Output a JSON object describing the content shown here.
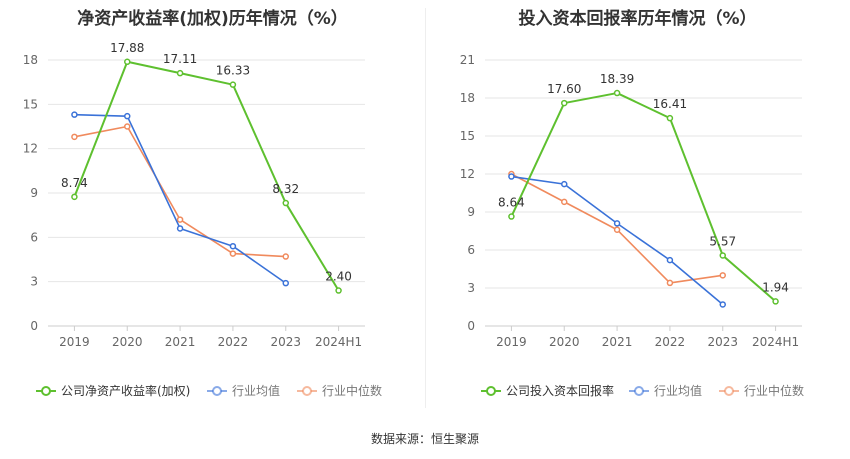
{
  "source_label": "数据来源：恒生聚源",
  "colors": {
    "company": "#5ec02f",
    "avg": "#3a72d8",
    "median": "#f08a5d",
    "grid": "#e6e6e6",
    "axis_text": "#666666"
  },
  "chart_data": [
    {
      "type": "line",
      "title": "净资产收益率(加权)历年情况（%）",
      "categories": [
        "2019",
        "2020",
        "2021",
        "2022",
        "2023",
        "2024H1"
      ],
      "ylim": [
        0,
        18
      ],
      "yticks": [
        0,
        3,
        6,
        9,
        12,
        15,
        18
      ],
      "grid": true,
      "legend_position": "bottom-left",
      "series": [
        {
          "name": "公司净资产收益率(加权)",
          "color": "#5ec02f",
          "values": [
            8.74,
            17.88,
            17.11,
            16.33,
            8.32,
            2.4
          ],
          "labels": [
            "8.74",
            "17.88",
            "17.11",
            "16.33",
            "8.32",
            "2.40"
          ]
        },
        {
          "name": "行业均值",
          "color": "#3a72d8",
          "values": [
            14.3,
            14.2,
            6.6,
            5.4,
            2.9,
            null
          ]
        },
        {
          "name": "行业中位数",
          "color": "#f08a5d",
          "values": [
            12.8,
            13.5,
            7.2,
            4.9,
            4.7,
            null
          ]
        }
      ]
    },
    {
      "type": "line",
      "title": "投入资本回报率历年情况（%）",
      "categories": [
        "2019",
        "2020",
        "2021",
        "2022",
        "2023",
        "2024H1"
      ],
      "ylim": [
        0,
        21
      ],
      "yticks": [
        0,
        3,
        6,
        9,
        12,
        15,
        18,
        21
      ],
      "grid": true,
      "legend_position": "bottom-left",
      "series": [
        {
          "name": "公司投入资本回报率",
          "color": "#5ec02f",
          "values": [
            8.64,
            17.6,
            18.39,
            16.41,
            5.57,
            1.94
          ],
          "labels": [
            "8.64",
            "17.60",
            "18.39",
            "16.41",
            "5.57",
            "1.94"
          ]
        },
        {
          "name": "行业均值",
          "color": "#3a72d8",
          "values": [
            11.8,
            11.2,
            8.1,
            5.2,
            1.7,
            null
          ]
        },
        {
          "name": "行业中位数",
          "color": "#f08a5d",
          "values": [
            12.0,
            9.8,
            7.6,
            3.4,
            4.0,
            null
          ]
        }
      ]
    }
  ]
}
